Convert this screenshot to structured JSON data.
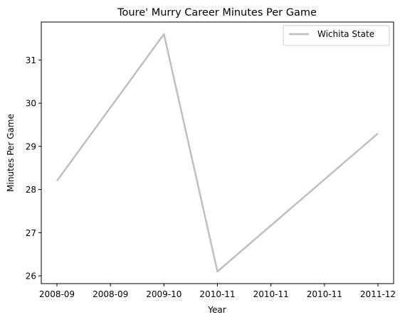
{
  "chart_data": {
    "type": "line",
    "title": "Toure' Murry Career Minutes Per Game",
    "xlabel": "Year",
    "ylabel": "Minutes Per Game",
    "x_tick_labels": [
      "2008-09",
      "2008-09",
      "2009-10",
      "2010-11",
      "2010-11",
      "2010-11",
      "2011-12"
    ],
    "y_ticks": [
      26,
      27,
      28,
      29,
      30,
      31
    ],
    "ylim": [
      25.82,
      31.88
    ],
    "grid": false,
    "legend_position": "top-right",
    "series": [
      {
        "name": "Wichita State",
        "color": "#bfbfbf",
        "points": [
          {
            "x": "2008-09",
            "y": 28.2
          },
          {
            "x": "2009-10",
            "y": 31.6
          },
          {
            "x": "2010-11",
            "y": 26.1
          },
          {
            "x": "2011-12",
            "y": 29.3
          }
        ]
      }
    ]
  }
}
